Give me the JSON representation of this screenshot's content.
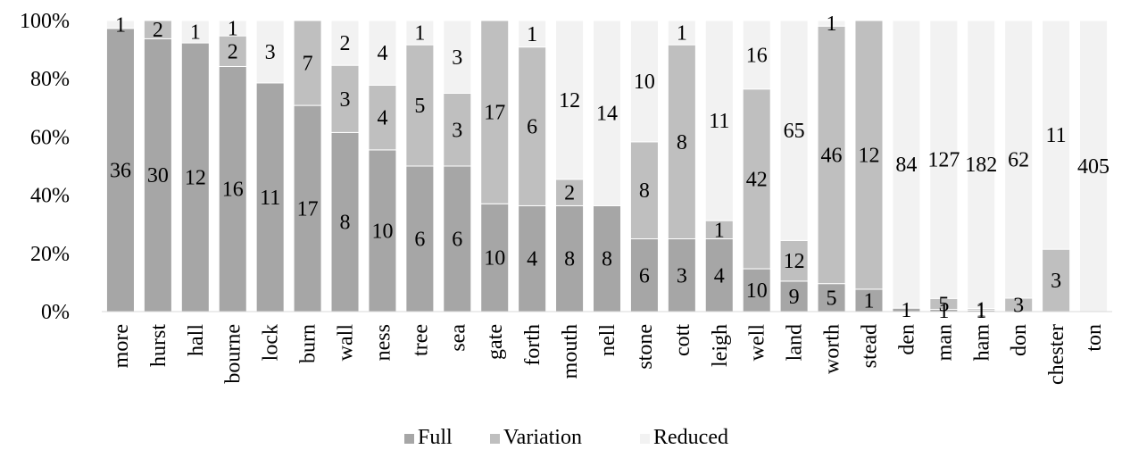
{
  "chart_data": {
    "type": "bar",
    "stacked": "percent",
    "categories": [
      "more",
      "hurst",
      "hall",
      "bourne",
      "lock",
      "burn",
      "wall",
      "ness",
      "tree",
      "sea",
      "gate",
      "forth",
      "mouth",
      "nell",
      "stone",
      "cott",
      "leigh",
      "well",
      "land",
      "worth",
      "stead",
      "den",
      "man",
      "ham",
      "don",
      "chester",
      "ton"
    ],
    "series": [
      {
        "name": "Full",
        "color": "#a6a6a6",
        "values": [
          36,
          30,
          12,
          16,
          11,
          17,
          8,
          10,
          6,
          6,
          10,
          4,
          8,
          8,
          6,
          3,
          4,
          10,
          9,
          5,
          1,
          1,
          1,
          1,
          0,
          0,
          0
        ]
      },
      {
        "name": "Variation",
        "color": "#bfbfbf",
        "values": [
          0,
          2,
          0,
          2,
          0,
          7,
          3,
          4,
          5,
          3,
          17,
          6,
          2,
          0,
          8,
          8,
          1,
          42,
          12,
          46,
          12,
          0,
          5,
          1,
          3,
          3,
          0
        ]
      },
      {
        "name": "Reduced",
        "color": "#f2f2f2",
        "values": [
          1,
          0,
          1,
          1,
          3,
          0,
          2,
          4,
          1,
          3,
          0,
          1,
          12,
          14,
          10,
          1,
          11,
          16,
          65,
          1,
          0,
          84,
          127,
          182,
          62,
          11,
          405
        ]
      }
    ],
    "labels": [
      [
        "36",
        "",
        "1"
      ],
      [
        "30",
        "2",
        ""
      ],
      [
        "12",
        "",
        "1"
      ],
      [
        "16",
        "2",
        "1"
      ],
      [
        "11",
        "",
        "3"
      ],
      [
        "17",
        "7",
        ""
      ],
      [
        "8",
        "3",
        "2"
      ],
      [
        "10",
        "4",
        "4"
      ],
      [
        "6",
        "5",
        "1"
      ],
      [
        "6",
        "3",
        "3"
      ],
      [
        "10",
        "17",
        ""
      ],
      [
        "4",
        "6",
        "1"
      ],
      [
        "8",
        "2",
        "12"
      ],
      [
        "8",
        "",
        "14"
      ],
      [
        "6",
        "8",
        "10"
      ],
      [
        "3",
        "8",
        "1"
      ],
      [
        "4",
        "1",
        "11"
      ],
      [
        "10",
        "42",
        "16"
      ],
      [
        "9",
        "12",
        "65"
      ],
      [
        "5",
        "46",
        "1"
      ],
      [
        "1",
        "12",
        ""
      ],
      [
        "1",
        "",
        "84"
      ],
      [
        "1",
        "5",
        "127"
      ],
      [
        "1",
        "1",
        "182"
      ],
      [
        "",
        "3",
        "62"
      ],
      [
        "",
        "3",
        "11"
      ],
      [
        "",
        "",
        "405"
      ]
    ],
    "yaxis": {
      "ticks": [
        "0%",
        "20%",
        "40%",
        "60%",
        "80%",
        "100%"
      ],
      "ylim": [
        0,
        100
      ]
    },
    "grid": false,
    "legend": {
      "position": "bottom",
      "entries": [
        "Full",
        "Variation",
        "Reduced"
      ]
    }
  }
}
